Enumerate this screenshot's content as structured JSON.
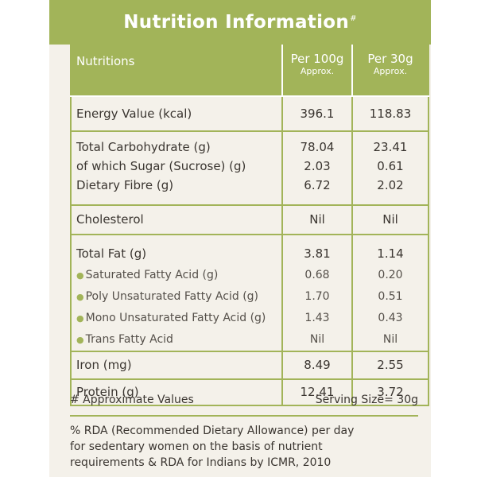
{
  "title": "Nutrition Information",
  "title_mark": "#",
  "columns": {
    "nutrient": "Nutritions",
    "per100": {
      "label": "Per 100g",
      "sub": "Approx."
    },
    "per30": {
      "label": "Per 30g",
      "sub": "Approx."
    }
  },
  "rows": {
    "energy": {
      "name": "Energy Value (kcal)",
      "per100": "396.1",
      "per30": "118.83"
    },
    "carbs": {
      "name": "Total Carbohydrate (g)",
      "per100": "78.04",
      "per30": "23.41"
    },
    "sugar": {
      "name": "of which Sugar (Sucrose) (g)",
      "per100": "2.03",
      "per30": "0.61"
    },
    "fibre": {
      "name": "Dietary Fibre (g)",
      "per100": "6.72",
      "per30": "2.02"
    },
    "cholesterol": {
      "name": "Cholesterol",
      "per100": "Nil",
      "per30": "Nil"
    },
    "fat": {
      "name": "Total Fat (g)",
      "per100": "3.81",
      "per30": "1.14"
    },
    "sat_fat": {
      "name": "Saturated Fatty Acid (g)",
      "per100": "0.68",
      "per30": "0.20"
    },
    "poly_fat": {
      "name": "Poly Unsaturated Fatty Acid (g)",
      "per100": "1.70",
      "per30": "0.51"
    },
    "mono_fat": {
      "name": "Mono Unsaturated Fatty Acid (g)",
      "per100": "1.43",
      "per30": "0.43"
    },
    "trans_fat": {
      "name": "Trans Fatty Acid",
      "per100": "Nil",
      "per30": "Nil"
    },
    "iron": {
      "name": "Iron (mg)",
      "per100": "8.49",
      "per30": "2.55"
    },
    "protein": {
      "name": "Protein (g)",
      "per100": "12.41",
      "per30": "3.72"
    }
  },
  "footer": {
    "approx": "# Approximate Values",
    "serving": "Serving Size= 30g",
    "notes": [
      "% RDA (Recommended Dietary Allowance) per day",
      "for sedentary women on the basis of nutrient",
      "requirements & RDA for Indians by ICMR, 2010"
    ]
  },
  "colors": {
    "accent": "#a2b459",
    "panel": "#f4f1ea",
    "text": "#3a3530"
  }
}
